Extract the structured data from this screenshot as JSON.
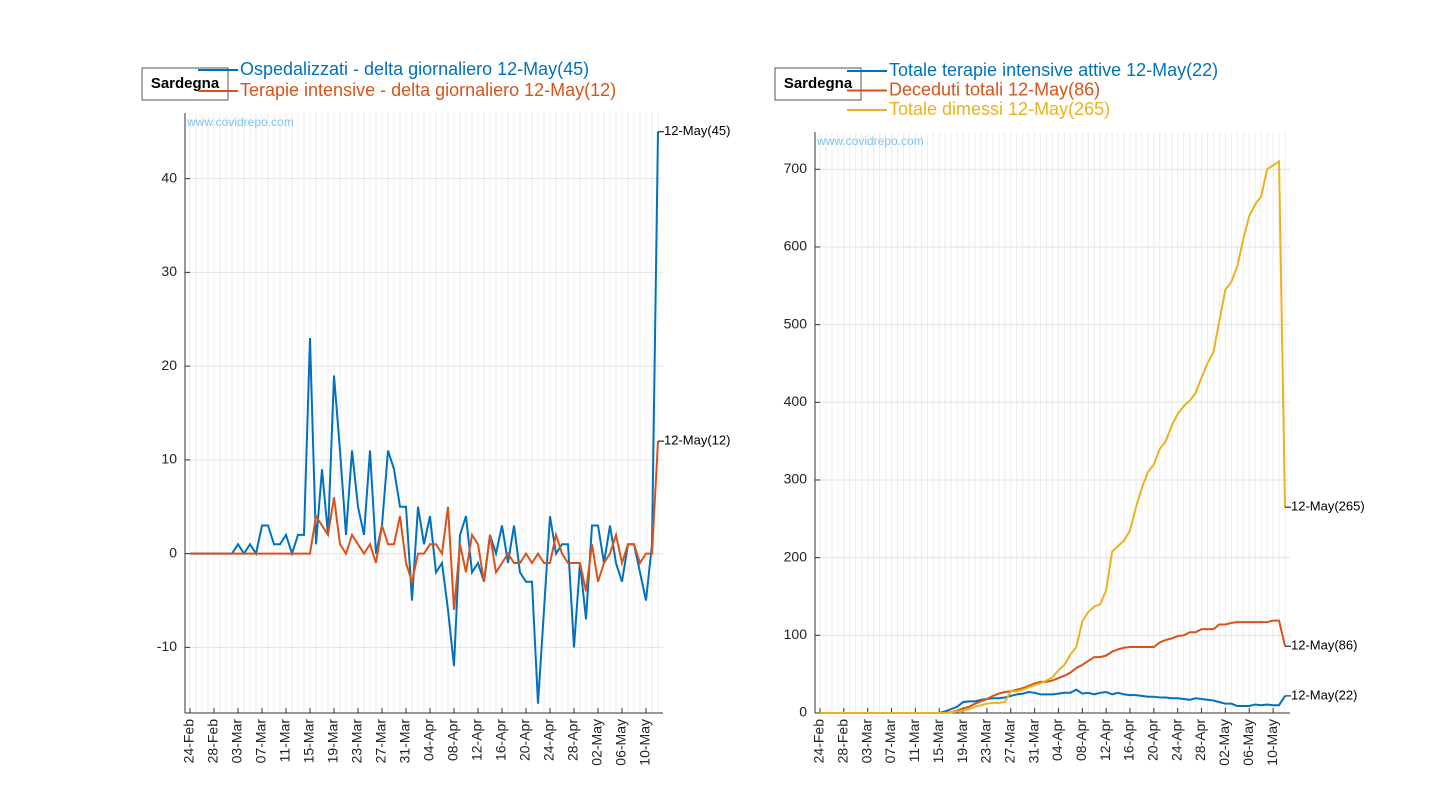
{
  "chart_data": [
    {
      "type": "line",
      "box_label": "Sardegna",
      "watermark": "www.covidrepo.com",
      "categories": [
        "24-Feb",
        null,
        null,
        null,
        "28-Feb",
        null,
        null,
        null,
        "03-Mar",
        null,
        null,
        null,
        "07-Mar",
        null,
        null,
        null,
        "11-Mar",
        null,
        null,
        null,
        "15-Mar",
        null,
        null,
        null,
        "19-Mar",
        null,
        null,
        null,
        "23-Mar",
        null,
        null,
        null,
        "27-Mar",
        null,
        null,
        null,
        "31-Mar",
        null,
        null,
        null,
        "04-Apr",
        null,
        null,
        null,
        "08-Apr",
        null,
        null,
        null,
        "12-Apr",
        null,
        null,
        null,
        "16-Apr",
        null,
        null,
        null,
        "20-Apr",
        null,
        null,
        null,
        "24-Apr",
        null,
        null,
        null,
        "28-Apr",
        null,
        null,
        null,
        "02-May",
        null,
        null,
        null,
        "06-May",
        null,
        null,
        null,
        "10-May",
        null,
        null
      ],
      "ylim": [
        -17,
        47
      ],
      "yticks": [
        -10,
        0,
        10,
        20,
        30,
        40
      ],
      "grid": true,
      "series": [
        {
          "name": "Ospedalizzati - delta giornaliero 12-May(45)",
          "color": "#0072BD",
          "end_label": "12-May(45)",
          "values": [
            0,
            0,
            0,
            0,
            0,
            0,
            0,
            0,
            1,
            0,
            1,
            0,
            3,
            3,
            1,
            1,
            2,
            0,
            2,
            2,
            23,
            1,
            9,
            2,
            19,
            11,
            2,
            11,
            5,
            2,
            11,
            0,
            3,
            11,
            9,
            5,
            5,
            -5,
            5,
            1,
            4,
            -2,
            -1,
            -6,
            -12,
            2,
            4,
            -2,
            -1,
            -3,
            2,
            0,
            3,
            -1,
            3,
            -2,
            -3,
            -3,
            -16,
            -6,
            4,
            0,
            1,
            1,
            -10,
            -1,
            -7,
            3,
            3,
            -1,
            3,
            -1,
            -3,
            1,
            1,
            -2,
            -5,
            1,
            45
          ]
        },
        {
          "name": "Terapie intensive - delta giornaliero 12-May(12)",
          "color": "#D95319",
          "end_label": "12-May(12)",
          "values": [
            0,
            0,
            0,
            0,
            0,
            0,
            0,
            0,
            0,
            0,
            0,
            0,
            0,
            0,
            0,
            0,
            0,
            0,
            0,
            0,
            0,
            4,
            3,
            2,
            6,
            1,
            0,
            2,
            1,
            0,
            1,
            -1,
            3,
            1,
            1,
            4,
            -1,
            -3,
            0,
            0,
            1,
            1,
            0,
            5,
            -6,
            1,
            -2,
            2,
            1,
            -3,
            2,
            -2,
            -1,
            0,
            -1,
            -1,
            0,
            -1,
            0,
            -1,
            -1,
            2,
            0,
            -1,
            -1,
            -1,
            -4,
            1,
            -3,
            -1,
            0,
            2,
            -1,
            1,
            1,
            -1,
            0,
            0,
            12
          ]
        }
      ]
    },
    {
      "type": "line",
      "box_label": "Sardegna",
      "watermark": "www.covidrepo.com",
      "categories": [
        "24-Feb",
        null,
        null,
        null,
        "28-Feb",
        null,
        null,
        null,
        "03-Mar",
        null,
        null,
        null,
        "07-Mar",
        null,
        null,
        null,
        "11-Mar",
        null,
        null,
        null,
        "15-Mar",
        null,
        null,
        null,
        "19-Mar",
        null,
        null,
        null,
        "23-Mar",
        null,
        null,
        null,
        "27-Mar",
        null,
        null,
        null,
        "31-Mar",
        null,
        null,
        null,
        "04-Apr",
        null,
        null,
        null,
        "08-Apr",
        null,
        null,
        null,
        "12-Apr",
        null,
        null,
        null,
        "16-Apr",
        null,
        null,
        null,
        "20-Apr",
        null,
        null,
        null,
        "24-Apr",
        null,
        null,
        null,
        "28-Apr",
        null,
        null,
        null,
        "02-May",
        null,
        null,
        null,
        "06-May",
        null,
        null,
        null,
        "10-May",
        null,
        null
      ],
      "ylim": [
        0,
        748
      ],
      "yticks": [
        0,
        100,
        200,
        300,
        400,
        500,
        600,
        700
      ],
      "grid": true,
      "series": [
        {
          "name": "Totale terapie intensive attive 12-May(22)",
          "color": "#0072BD",
          "end_label": "12-May(22)",
          "values": [
            0,
            0,
            0,
            0,
            0,
            0,
            0,
            0,
            0,
            0,
            0,
            0,
            0,
            0,
            0,
            0,
            0,
            0,
            0,
            0,
            0,
            2,
            5,
            8,
            14,
            15,
            15,
            17,
            18,
            19,
            19,
            20,
            22,
            24,
            25,
            27,
            26,
            24,
            24,
            24,
            25,
            26,
            26,
            30,
            25,
            26,
            24,
            26,
            27,
            24,
            26,
            24,
            23,
            23,
            22,
            21,
            21,
            20,
            20,
            19,
            19,
            18,
            17,
            19,
            18,
            17,
            16,
            14,
            12,
            12,
            9,
            9,
            9,
            11,
            10,
            11,
            10,
            10,
            22
          ]
        },
        {
          "name": "Deceduti totali 12-May(86)",
          "color": "#D95319",
          "end_label": "12-May(86)",
          "values": [
            0,
            0,
            0,
            0,
            0,
            0,
            0,
            0,
            0,
            0,
            0,
            0,
            0,
            0,
            0,
            0,
            0,
            0,
            0,
            0,
            0,
            0,
            1,
            3,
            6,
            8,
            12,
            15,
            18,
            22,
            25,
            27,
            28,
            30,
            32,
            35,
            38,
            40,
            40,
            42,
            45,
            48,
            52,
            58,
            62,
            67,
            72,
            72,
            74,
            79,
            82,
            84,
            85,
            85,
            85,
            85,
            85,
            91,
            94,
            96,
            99,
            100,
            104,
            104,
            108,
            108,
            108,
            114,
            114,
            116,
            117,
            117,
            117,
            117,
            117,
            117,
            119,
            119,
            86
          ]
        },
        {
          "name": "Totale dimessi 12-May(265)",
          "color": "#EDB120",
          "end_label": "12-May(265)",
          "values": [
            0,
            0,
            0,
            0,
            0,
            0,
            0,
            0,
            0,
            0,
            0,
            0,
            0,
            0,
            0,
            0,
            0,
            0,
            0,
            0,
            0,
            0,
            1,
            2,
            3,
            5,
            8,
            10,
            12,
            13,
            13,
            14,
            28,
            28,
            30,
            33,
            36,
            38,
            42,
            46,
            55,
            62,
            75,
            85,
            118,
            130,
            137,
            140,
            158,
            208,
            215,
            222,
            235,
            265,
            290,
            310,
            320,
            340,
            350,
            370,
            385,
            395,
            402,
            412,
            432,
            450,
            465,
            505,
            545,
            555,
            575,
            610,
            640,
            655,
            665,
            700,
            705,
            710,
            265
          ]
        }
      ]
    }
  ]
}
